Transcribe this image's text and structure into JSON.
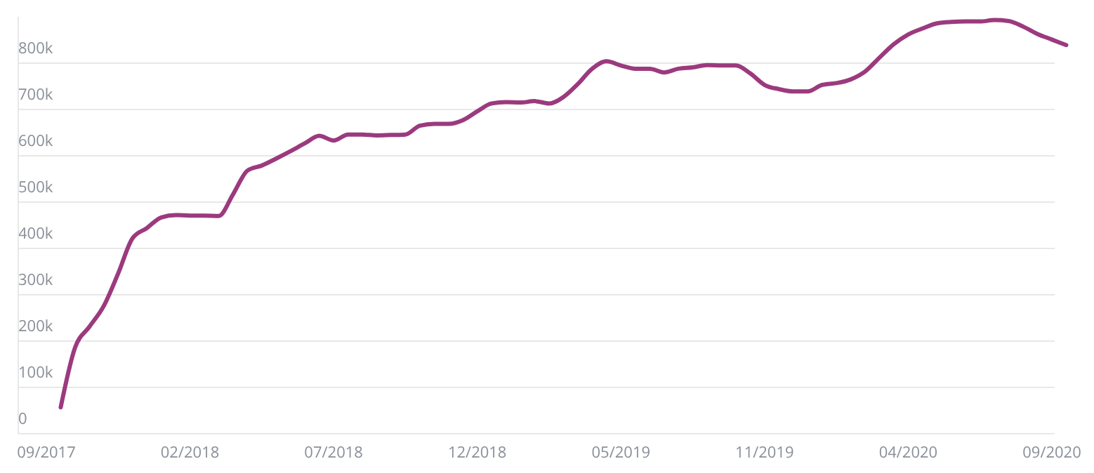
{
  "chart_data": {
    "type": "line",
    "categories": [
      "09/2017",
      null,
      null,
      null,
      null,
      null,
      null,
      null,
      null,
      null,
      "02/2018",
      null,
      null,
      null,
      null,
      null,
      null,
      null,
      null,
      null,
      "07/2018",
      null,
      null,
      null,
      null,
      null,
      null,
      null,
      null,
      null,
      "12/2018",
      null,
      null,
      null,
      null,
      null,
      null,
      null,
      null,
      null,
      "05/2019",
      null,
      null,
      null,
      null,
      null,
      null,
      null,
      null,
      null,
      "11/2019",
      null,
      null,
      null,
      null,
      null,
      null,
      null,
      null,
      null,
      "04/2020",
      null,
      null,
      null,
      null,
      null,
      null,
      null,
      null,
      null,
      "09/2020",
      null
    ],
    "series": [
      {
        "color": "#9b3a7e",
        "values": [
          null,
          57000,
          186000,
          231000,
          276000,
          346000,
          422000,
          444000,
          467000,
          472000,
          471000,
          471000,
          470000,
          517000,
          568000,
          579000,
          594000,
          610000,
          627000,
          643000,
          633000,
          646000,
          646000,
          644000,
          645000,
          646000,
          665000,
          669000,
          669000,
          677000,
          696000,
          713000,
          716000,
          715000,
          718000,
          713000,
          727000,
          755000,
          788000,
          804000,
          795000,
          788000,
          788000,
          780000,
          788000,
          791000,
          796000,
          795000,
          795000,
          778000,
          753000,
          744000,
          739000,
          739000,
          753000,
          757000,
          765000,
          782000,
          812000,
          841000,
          862000,
          875000,
          886000,
          889000,
          890000,
          890000,
          893000,
          891000,
          879000,
          863000,
          851000,
          839000
        ]
      }
    ],
    "yticks": [
      {
        "value": 0,
        "label": "0"
      },
      {
        "value": 100000,
        "label": "100k"
      },
      {
        "value": 200000,
        "label": "200k"
      },
      {
        "value": 300000,
        "label": "300k"
      },
      {
        "value": 400000,
        "label": "400k"
      },
      {
        "value": 500000,
        "label": "500k"
      },
      {
        "value": 600000,
        "label": "600k"
      },
      {
        "value": 700000,
        "label": "700k"
      },
      {
        "value": 800000,
        "label": "800k"
      }
    ],
    "ylim": [
      0,
      900000
    ],
    "grid": "y",
    "marker": "none",
    "line_style": "solid"
  }
}
